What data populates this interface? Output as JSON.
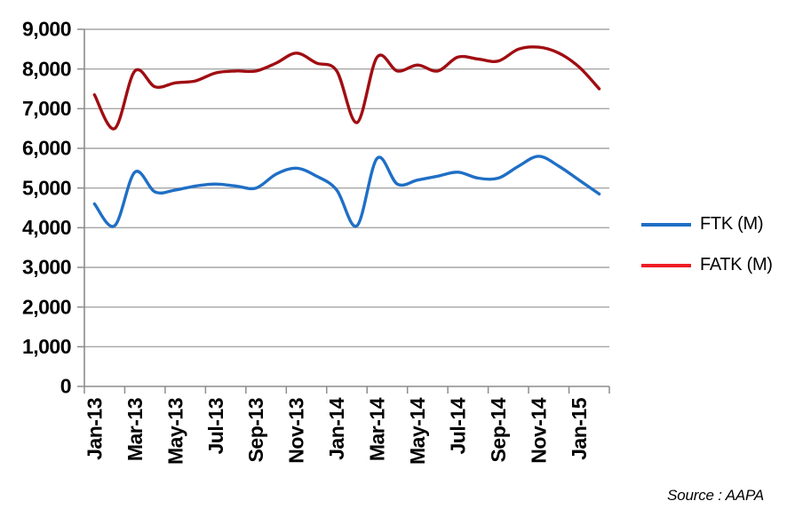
{
  "chart_data": {
    "type": "line",
    "smoothed": true,
    "categories": [
      "Jan-13",
      "Feb-13",
      "Mar-13",
      "Apr-13",
      "May-13",
      "Jun-13",
      "Jul-13",
      "Aug-13",
      "Sep-13",
      "Oct-13",
      "Nov-13",
      "Dec-13",
      "Jan-14",
      "Feb-14",
      "Mar-14",
      "Apr-14",
      "May-14",
      "Jun-14",
      "Jul-14",
      "Aug-14",
      "Sep-14",
      "Oct-14",
      "Nov-14",
      "Dec-14",
      "Jan-15",
      "Feb-15"
    ],
    "x_label_every": 2,
    "series": [
      {
        "name": "FTK (M)",
        "line_color": "#1F6FC5",
        "legend_color": "#1F6FC5",
        "values": [
          4600,
          4050,
          5400,
          4900,
          4950,
          5050,
          5100,
          5050,
          5000,
          5350,
          5500,
          5300,
          4950,
          4050,
          5750,
          5100,
          5200,
          5300,
          5400,
          5250,
          5250,
          5550,
          5800,
          5550,
          5200,
          4850
        ]
      },
      {
        "name": "FATK (M)",
        "line_color": "#A00D12",
        "legend_color": "#ED1C24",
        "values": [
          7350,
          6500,
          7950,
          7550,
          7650,
          7700,
          7900,
          7950,
          7950,
          8150,
          8400,
          8150,
          7950,
          6650,
          8300,
          7950,
          8100,
          7950,
          8300,
          8250,
          8200,
          8500,
          8550,
          8400,
          8050,
          7500
        ]
      }
    ],
    "ylim": [
      0,
      9000
    ],
    "y_tick_step": 1000,
    "y_tick_labels": [
      "0",
      "1,000",
      "2,000",
      "3,000",
      "4,000",
      "5,000",
      "6,000",
      "7,000",
      "8,000",
      "9,000"
    ],
    "grid": true,
    "legend_position": "right"
  },
  "source_note": "Source : AAPA",
  "colors": {
    "background": "#FFFFFF",
    "grid": "#A6A6A6",
    "axis": "#8C8C8C",
    "text": "#000000"
  }
}
